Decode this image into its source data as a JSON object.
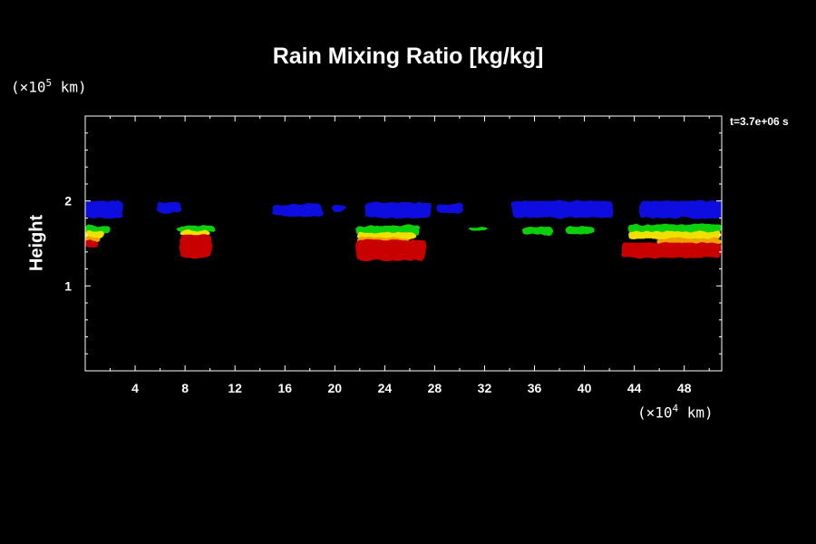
{
  "chart_data": {
    "type": "heatmap",
    "title": "Rain Mixing Ratio [kg/kg]",
    "ylabel": "Height",
    "xlabel": "",
    "x_scale": {
      "prefix": "(×10",
      "exponent": "4",
      "suffix": " km)"
    },
    "y_scale": {
      "prefix": "(×10",
      "exponent": "5",
      "suffix": " km)"
    },
    "time_label": "t=3.7e+06 s",
    "xlim": [
      0,
      51
    ],
    "ylim": [
      0,
      3
    ],
    "xticks": [
      "4",
      "8",
      "12",
      "16",
      "20",
      "24",
      "28",
      "32",
      "36",
      "40",
      "44",
      "48"
    ],
    "xtick_values": [
      4,
      8,
      12,
      16,
      20,
      24,
      28,
      32,
      36,
      40,
      44,
      48
    ],
    "yticks": [
      "1",
      "2"
    ],
    "ytick_values": [
      1,
      2
    ],
    "colors": {
      "background": "#000000",
      "axes": "#ffffff",
      "blue": "#1010e0",
      "green": "#10d010",
      "yellow": "#f0e000",
      "orange": "#f0a000",
      "red": "#c80000"
    },
    "regions": [
      {
        "level": "blue",
        "x": [
          0,
          3.0
        ],
        "y": [
          1.8,
          2.0
        ]
      },
      {
        "level": "blue",
        "x": [
          5.7,
          7.7
        ],
        "y": [
          1.86,
          1.98
        ]
      },
      {
        "level": "blue",
        "x": [
          15.0,
          19.0
        ],
        "y": [
          1.82,
          1.96
        ]
      },
      {
        "level": "blue",
        "x": [
          19.8,
          20.8
        ],
        "y": [
          1.88,
          1.95
        ]
      },
      {
        "level": "blue",
        "x": [
          22.4,
          27.7
        ],
        "y": [
          1.8,
          1.98
        ]
      },
      {
        "level": "blue",
        "x": [
          28.2,
          30.3
        ],
        "y": [
          1.86,
          1.97
        ]
      },
      {
        "level": "blue",
        "x": [
          34.2,
          42.3
        ],
        "y": [
          1.8,
          2.0
        ]
      },
      {
        "level": "blue",
        "x": [
          44.4,
          51.0
        ],
        "y": [
          1.8,
          2.0
        ]
      },
      {
        "level": "green",
        "x": [
          0,
          2.0
        ],
        "y": [
          1.62,
          1.71
        ]
      },
      {
        "level": "green",
        "x": [
          7.4,
          10.4
        ],
        "y": [
          1.64,
          1.7
        ]
      },
      {
        "level": "green",
        "x": [
          21.7,
          26.8
        ],
        "y": [
          1.6,
          1.71
        ]
      },
      {
        "level": "green",
        "x": [
          30.7,
          32.2
        ],
        "y": [
          1.65,
          1.69
        ]
      },
      {
        "level": "green",
        "x": [
          35.0,
          37.5
        ],
        "y": [
          1.6,
          1.7
        ]
      },
      {
        "level": "green",
        "x": [
          38.5,
          40.8
        ],
        "y": [
          1.61,
          1.7
        ]
      },
      {
        "level": "green",
        "x": [
          43.5,
          51.0
        ],
        "y": [
          1.62,
          1.72
        ]
      },
      {
        "level": "yellow",
        "x": [
          0,
          1.5
        ],
        "y": [
          1.56,
          1.65
        ]
      },
      {
        "level": "yellow",
        "x": [
          7.6,
          10.0
        ],
        "y": [
          1.6,
          1.65
        ]
      },
      {
        "level": "yellow",
        "x": [
          21.8,
          26.5
        ],
        "y": [
          1.55,
          1.63
        ]
      },
      {
        "level": "yellow",
        "x": [
          43.5,
          51.0
        ],
        "y": [
          1.55,
          1.64
        ]
      },
      {
        "level": "orange",
        "x": [
          0,
          1.2
        ],
        "y": [
          1.52,
          1.58
        ]
      },
      {
        "level": "orange",
        "x": [
          21.8,
          26.0
        ],
        "y": [
          1.5,
          1.57
        ]
      },
      {
        "level": "orange",
        "x": [
          45.8,
          51.0
        ],
        "y": [
          1.5,
          1.56
        ]
      },
      {
        "level": "red",
        "x": [
          0,
          1.0
        ],
        "y": [
          1.45,
          1.54
        ]
      },
      {
        "level": "red",
        "x": [
          7.6,
          10.1
        ],
        "y": [
          1.33,
          1.61
        ]
      },
      {
        "level": "red",
        "x": [
          21.7,
          27.3
        ],
        "y": [
          1.3,
          1.54
        ]
      },
      {
        "level": "red",
        "x": [
          43.0,
          51.0
        ],
        "y": [
          1.33,
          1.51
        ]
      }
    ]
  }
}
